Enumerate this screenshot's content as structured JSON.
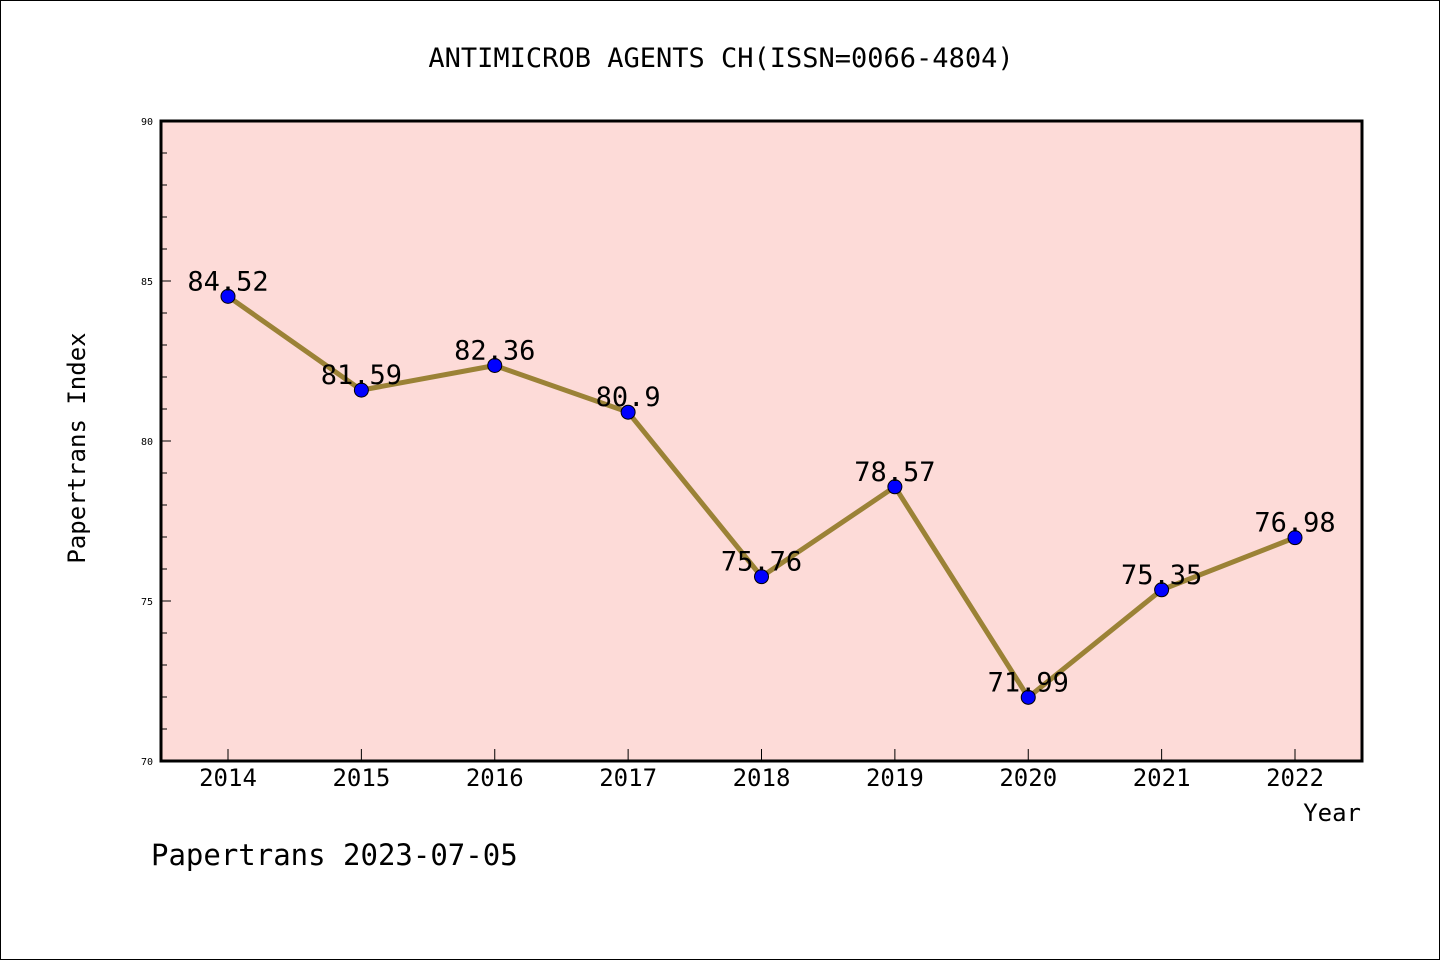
{
  "chart_data": {
    "type": "line",
    "title": "ANTIMICROB AGENTS CH(ISSN=0066-4804)",
    "xlabel": "Year",
    "ylabel": "Papertrans Index",
    "categories": [
      "2014",
      "2015",
      "2016",
      "2017",
      "2018",
      "2019",
      "2020",
      "2021",
      "2022"
    ],
    "series": [
      {
        "values": [
          84.52,
          81.59,
          82.36,
          80.9,
          75.76,
          78.57,
          71.99,
          75.35,
          76.98
        ],
        "labels": [
          "84.52",
          "81.59",
          "82.36",
          "80.9",
          "75.76",
          "78.57",
          "71.99",
          "75.35",
          "76.98"
        ]
      }
    ],
    "ylim": [
      70,
      90
    ],
    "yticks": [
      70,
      75,
      80,
      85,
      90
    ],
    "grid": false,
    "plot_background": "#fddbd8",
    "line_color": "#9b8236",
    "marker_color": "#0000ff"
  },
  "footer": "Papertrans 2023-07-05"
}
